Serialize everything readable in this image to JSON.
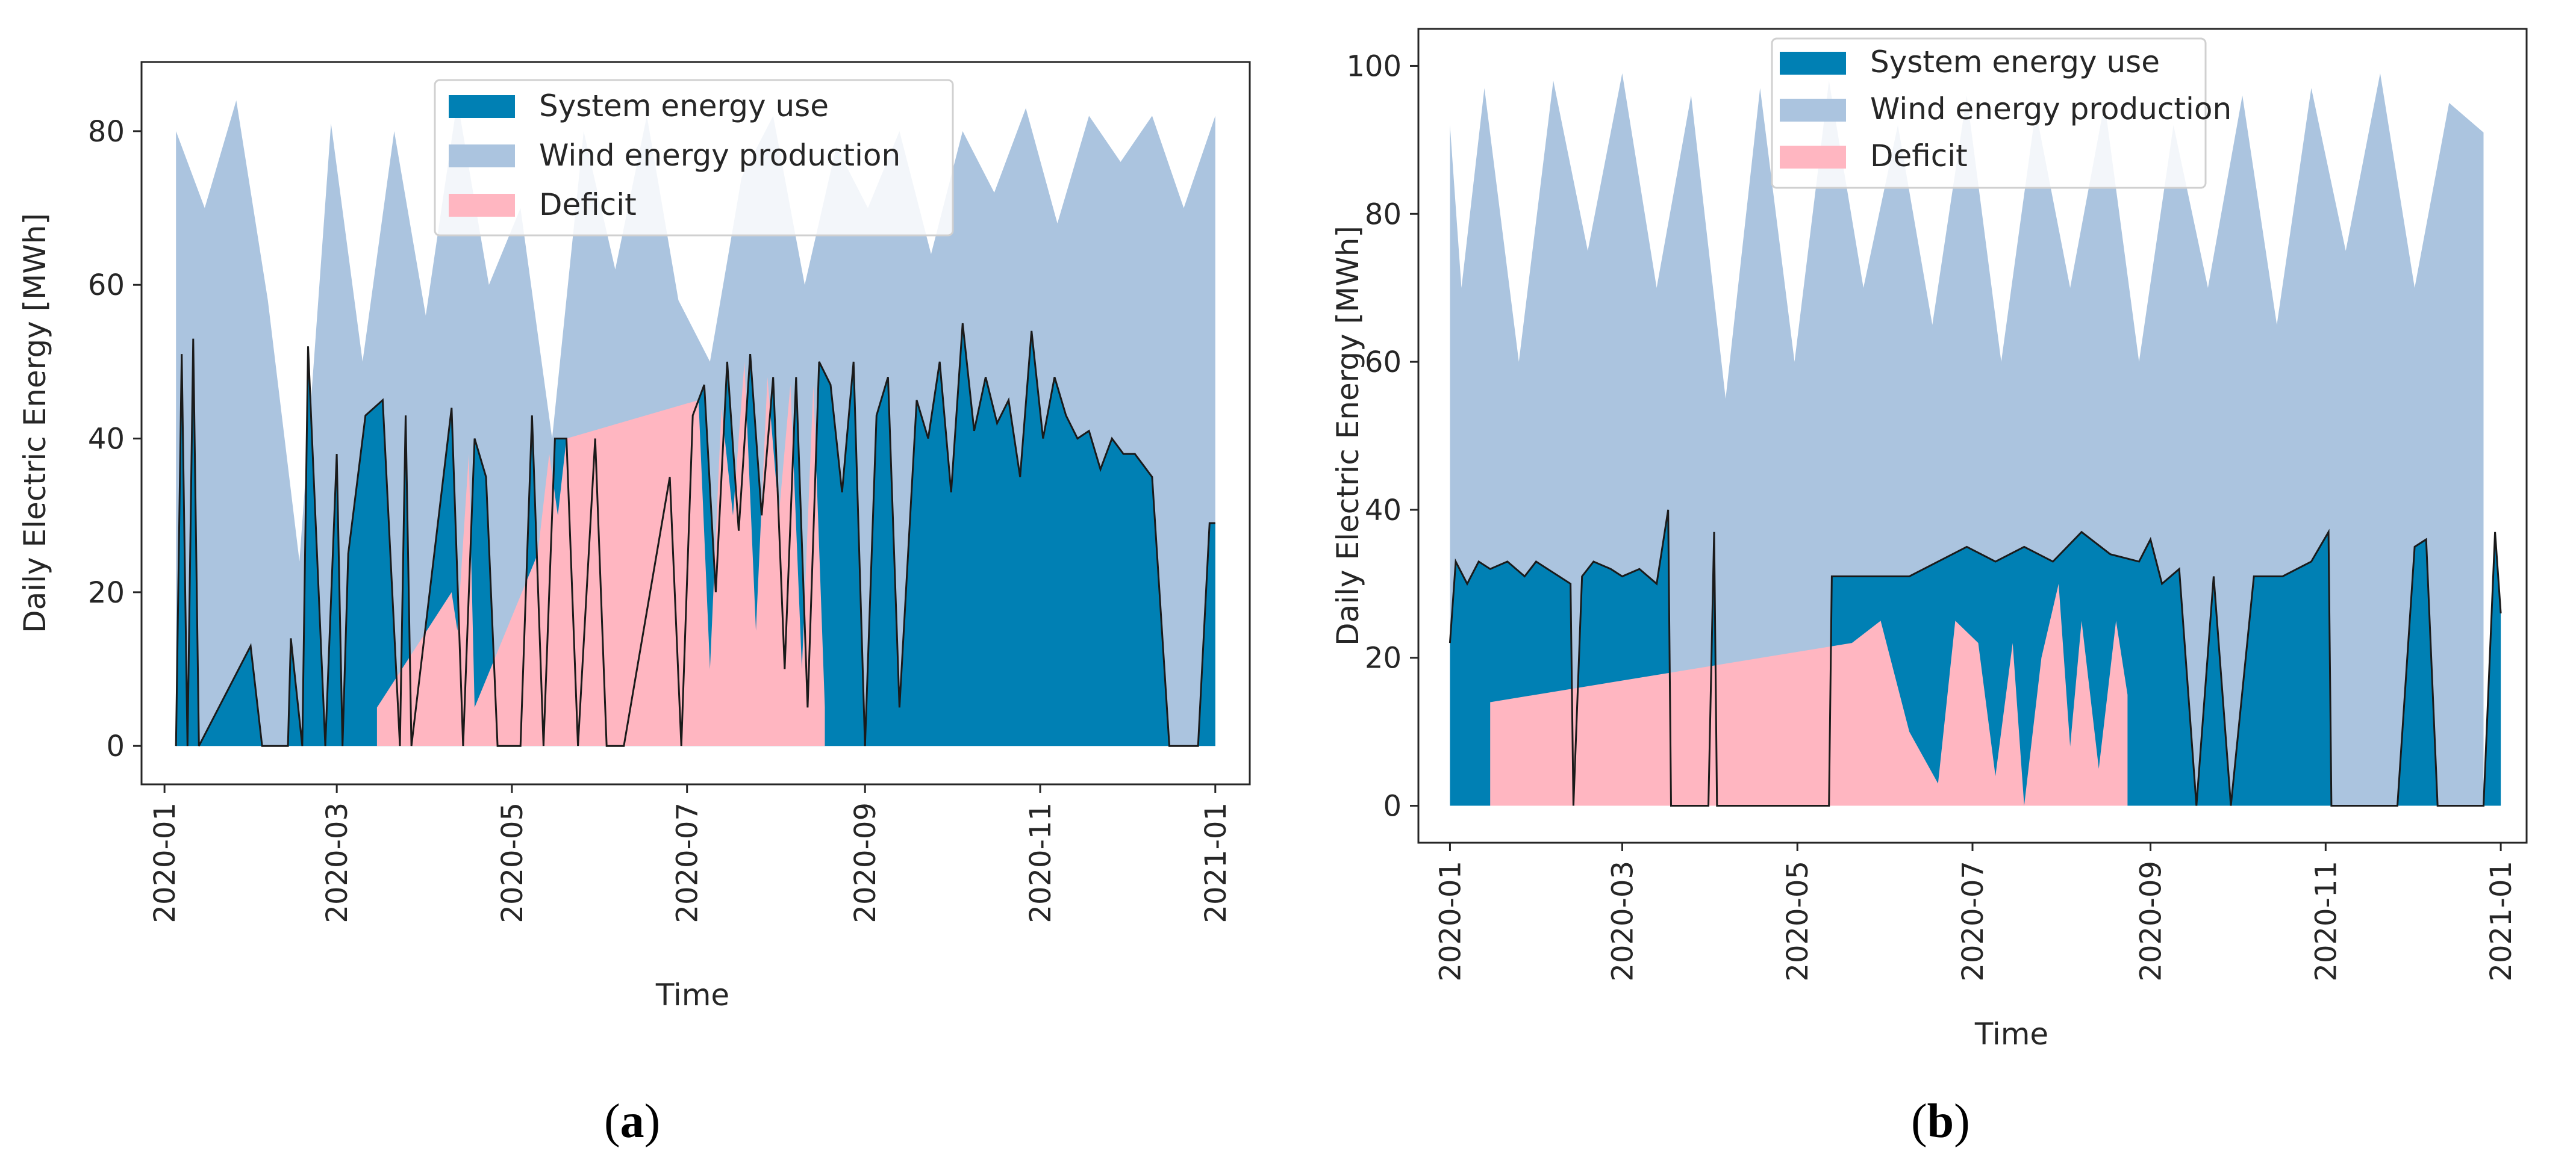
{
  "colors": {
    "system_use": "#0080b4",
    "wind_production": "#abc4df",
    "deficit": "#ffb6c1",
    "axis": "#262626",
    "line": "#1a1a1a"
  },
  "captions": [
    {
      "open": "(",
      "letter": "a",
      "close": ")"
    },
    {
      "open": "(",
      "letter": "b",
      "close": ")"
    }
  ],
  "chart_data": [
    {
      "id": "a",
      "type": "area",
      "xlabel": "Time",
      "ylabel": "Daily Electric Energy [MWh]",
      "ylim": [
        -5,
        89
      ],
      "yticks": [
        0,
        20,
        40,
        60,
        80
      ],
      "x_domain_days": [
        -8,
        378
      ],
      "xticks": [
        {
          "label": "2020-01",
          "day": 0
        },
        {
          "label": "2020-03",
          "day": 60
        },
        {
          "label": "2020-05",
          "day": 121
        },
        {
          "label": "2020-07",
          "day": 182
        },
        {
          "label": "2020-09",
          "day": 244
        },
        {
          "label": "2020-11",
          "day": 305
        },
        {
          "label": "2021-01",
          "day": 366
        }
      ],
      "legend": {
        "placement": "top-center",
        "entries": [
          "System energy use",
          "Wind energy production",
          "Deficit"
        ]
      },
      "series": [
        {
          "name": "Wind energy production",
          "style": "fill",
          "days": [
            4,
            14,
            25,
            36,
            47,
            58,
            69,
            80,
            91,
            102,
            113,
            124,
            135,
            146,
            157,
            168,
            179,
            190,
            201,
            212,
            223,
            234,
            245,
            256,
            267,
            278,
            289,
            300,
            311,
            322,
            333,
            344,
            355,
            366
          ],
          "values": [
            80,
            70,
            84,
            58,
            24,
            81,
            50,
            80,
            56,
            84,
            60,
            70,
            40,
            80,
            62,
            82,
            58,
            50,
            74,
            82,
            60,
            78,
            70,
            80,
            64,
            80,
            72,
            83,
            68,
            82,
            76,
            82,
            70,
            82
          ]
        },
        {
          "name": "System energy use",
          "style": "fill+line",
          "days": [
            4,
            6,
            8,
            10,
            12,
            30,
            34,
            43,
            44,
            48,
            50,
            56,
            60,
            62,
            64,
            70,
            76,
            82,
            84,
            86,
            100,
            104,
            108,
            112,
            116,
            124,
            128,
            132,
            136,
            140,
            144,
            150,
            154,
            156,
            160,
            176,
            180,
            184,
            188,
            192,
            196,
            200,
            204,
            208,
            212,
            216,
            220,
            224,
            228,
            232,
            236,
            240,
            244,
            248,
            252,
            256,
            262,
            266,
            270,
            274,
            278,
            282,
            286,
            290,
            294,
            298,
            302,
            306,
            310,
            314,
            318,
            322,
            326,
            330,
            334,
            338,
            344,
            350,
            360,
            364,
            366
          ],
          "values": [
            0,
            51,
            0,
            53,
            0,
            13,
            0,
            0,
            14,
            0,
            52,
            0,
            38,
            0,
            25,
            43,
            45,
            0,
            43,
            0,
            44,
            0,
            40,
            35,
            0,
            0,
            43,
            0,
            40,
            40,
            0,
            40,
            0,
            0,
            0,
            35,
            0,
            43,
            47,
            20,
            50,
            28,
            51,
            30,
            48,
            10,
            48,
            5,
            50,
            47,
            33,
            50,
            0,
            43,
            48,
            5,
            45,
            40,
            50,
            33,
            55,
            41,
            48,
            42,
            45,
            35,
            54,
            40,
            48,
            43,
            40,
            41,
            36,
            40,
            38,
            38,
            35,
            0,
            0,
            29,
            29
          ]
        },
        {
          "name": "Deficit",
          "style": "fill",
          "days": [
            74,
            100,
            102,
            106,
            108,
            130,
            134,
            137,
            140,
            186,
            190,
            194,
            198,
            202,
            206,
            210,
            214,
            218,
            222,
            226,
            230
          ],
          "values": [
            5,
            20,
            15,
            38,
            5,
            25,
            38,
            30,
            40,
            45,
            10,
            44,
            30,
            50,
            15,
            48,
            30,
            47,
            10,
            47,
            5
          ]
        }
      ]
    },
    {
      "id": "b",
      "type": "area",
      "xlabel": "Time",
      "ylabel": "Daily Electric Energy [MWh]",
      "ylim": [
        -5,
        105
      ],
      "yticks": [
        0,
        20,
        40,
        60,
        80,
        100
      ],
      "x_domain_days": [
        -11,
        375
      ],
      "xticks": [
        {
          "label": "2020-01",
          "day": 0
        },
        {
          "label": "2020-03",
          "day": 60
        },
        {
          "label": "2020-05",
          "day": 121
        },
        {
          "label": "2020-07",
          "day": 182
        },
        {
          "label": "2020-09",
          "day": 244
        },
        {
          "label": "2020-11",
          "day": 305
        },
        {
          "label": "2021-01",
          "day": 366
        }
      ],
      "legend": {
        "placement": "top-center",
        "entries": [
          "System energy use",
          "Wind energy production",
          "Deficit"
        ]
      },
      "series": [
        {
          "name": "Wind energy production",
          "style": "fill",
          "days": [
            0,
            4,
            12,
            24,
            36,
            48,
            60,
            72,
            84,
            96,
            108,
            120,
            132,
            144,
            156,
            168,
            180,
            192,
            204,
            216,
            228,
            240,
            252,
            264,
            276,
            288,
            300,
            312,
            324,
            336,
            348,
            360
          ],
          "values": [
            92,
            70,
            97,
            60,
            98,
            75,
            99,
            70,
            96,
            55,
            97,
            60,
            98,
            70,
            92,
            65,
            96,
            60,
            94,
            70,
            95,
            60,
            92,
            70,
            96,
            65,
            97,
            75,
            99,
            70,
            95,
            91
          ]
        },
        {
          "name": "System energy use",
          "style": "fill+line",
          "days": [
            0,
            2,
            6,
            10,
            14,
            20,
            26,
            30,
            34,
            38,
            42,
            43,
            46,
            50,
            56,
            60,
            66,
            72,
            76,
            77,
            90,
            92,
            93,
            132,
            133,
            140,
            150,
            160,
            170,
            180,
            190,
            200,
            210,
            220,
            230,
            240,
            244,
            248,
            254,
            260,
            266,
            272,
            280,
            290,
            300,
            306,
            307,
            330,
            336,
            340,
            344,
            360,
            364,
            366
          ],
          "values": [
            22,
            33,
            30,
            33,
            32,
            33,
            31,
            33,
            32,
            31,
            30,
            0,
            31,
            33,
            32,
            31,
            32,
            30,
            40,
            0,
            0,
            37,
            0,
            0,
            31,
            31,
            31,
            31,
            33,
            35,
            33,
            35,
            33,
            37,
            34,
            33,
            36,
            30,
            32,
            0,
            31,
            0,
            31,
            31,
            33,
            37,
            0,
            0,
            35,
            36,
            0,
            0,
            37,
            26
          ]
        },
        {
          "name": "Deficit",
          "style": "fill",
          "days": [
            14,
            140,
            150,
            160,
            170,
            176,
            184,
            190,
            196,
            200,
            206,
            212,
            216,
            220,
            226,
            232,
            236
          ],
          "values": [
            14,
            22,
            25,
            10,
            3,
            25,
            22,
            4,
            22,
            0,
            20,
            30,
            8,
            25,
            5,
            25,
            15
          ]
        }
      ]
    }
  ]
}
